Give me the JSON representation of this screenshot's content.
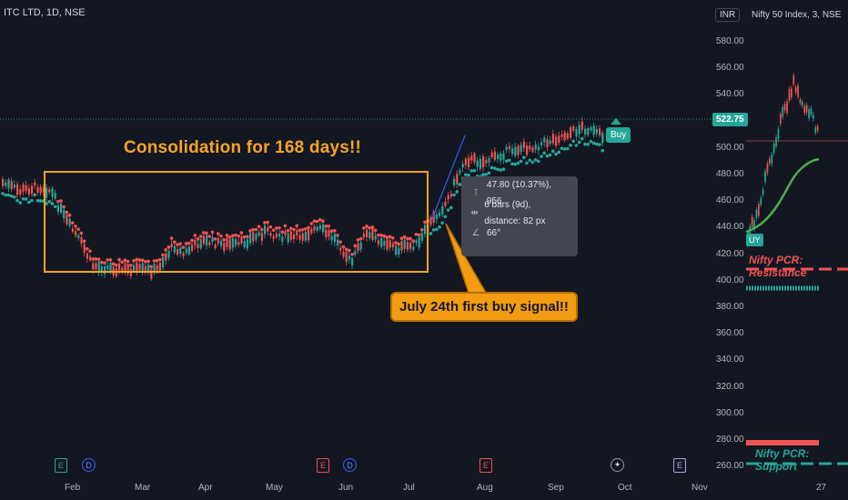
{
  "main_chart": {
    "symbol_title": "ITC LTD, 1D, NSE",
    "currency": "INR",
    "current_price": "522.75",
    "y_axis": [
      "580.00",
      "560.00",
      "540.00",
      "520.00",
      "500.00",
      "480.00",
      "460.00",
      "440.00",
      "420.00",
      "400.00",
      "380.00",
      "360.00",
      "340.00",
      "320.00",
      "300.00",
      "280.00",
      "260.00"
    ],
    "x_axis": [
      "Feb",
      "Mar",
      "Apr",
      "May",
      "Jun",
      "Jul",
      "Aug",
      "Sep",
      "Oct",
      "Nov"
    ],
    "consolidation_text": "Consolidation for 168 days!!",
    "buy_signal_text": "July 24th first buy signal!!",
    "buy_label": "Buy",
    "measure": {
      "price_change": "47.80 (10.37%), 956",
      "bars": "6 bars (9d), distance: 82 px",
      "angle": "66°"
    },
    "events": [
      {
        "type": "E",
        "color": "green"
      },
      {
        "type": "D"
      },
      {
        "type": "E",
        "color": "red"
      },
      {
        "type": "D"
      },
      {
        "type": "E",
        "color": "red"
      },
      {
        "type": "star"
      },
      {
        "type": "E",
        "color": "purple"
      }
    ],
    "colors": {
      "up": "#26a69a",
      "down": "#ef5350",
      "accent": "#f7a325",
      "line_blue": "#2962ff"
    }
  },
  "side_chart": {
    "title": "Nifty 50 Index, 3, NSE",
    "resistance_label": "Nifty PCR: Resistance",
    "support_label": "Nifty PCR: Support",
    "buy_label": "UY",
    "x_label": "27"
  }
}
